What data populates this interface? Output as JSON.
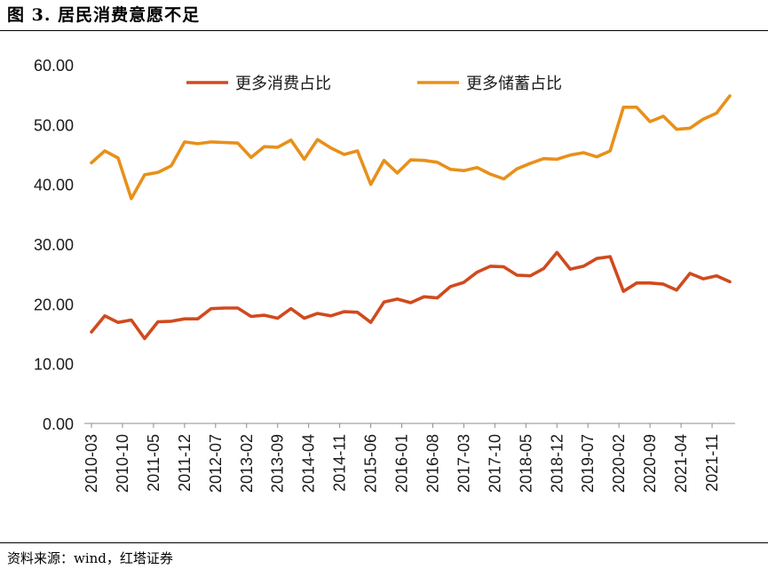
{
  "figure": {
    "title": "图 3. 居民消费意愿不足",
    "source": "资料来源：wind，红塔证券"
  },
  "colors": {
    "consume": "#D04A1E",
    "save": "#E8901A"
  },
  "chart_data": {
    "type": "line",
    "ylim": [
      0,
      60
    ],
    "yticks": [
      "0.00",
      "10.00",
      "20.00",
      "30.00",
      "40.00",
      "50.00",
      "60.00"
    ],
    "xticklabels": [
      "2010-03",
      "2010-10",
      "2011-05",
      "2011-12",
      "2012-07",
      "2013-02",
      "2013-09",
      "2014-04",
      "2014-11",
      "2015-06",
      "2016-01",
      "2016-08",
      "2017-03",
      "2017-10",
      "2018-05",
      "2018-12",
      "2019-07",
      "2020-02",
      "2020-09",
      "2021-04",
      "2021-11"
    ],
    "legend_position": "top-center",
    "grid": false,
    "series": [
      {
        "name": "更多消费占比",
        "values": [
          15.3,
          18.0,
          16.9,
          17.3,
          14.2,
          17.0,
          17.1,
          17.5,
          17.5,
          19.2,
          19.3,
          19.3,
          17.9,
          18.1,
          17.6,
          19.2,
          17.6,
          18.4,
          18.0,
          18.7,
          18.6,
          16.9,
          20.3,
          20.8,
          20.2,
          21.2,
          21.0,
          22.9,
          23.6,
          25.3,
          26.3,
          26.2,
          24.8,
          24.7,
          25.9,
          28.6,
          25.8,
          26.3,
          27.6,
          27.9,
          22.1,
          23.5,
          23.5,
          23.3,
          22.3,
          25.1,
          24.2,
          24.7,
          23.7
        ]
      },
      {
        "name": "更多储蓄占比",
        "values": [
          43.6,
          45.6,
          44.4,
          37.6,
          41.6,
          42.0,
          43.1,
          47.1,
          46.8,
          47.1,
          47.0,
          46.9,
          44.5,
          46.3,
          46.2,
          47.4,
          44.2,
          47.5,
          46.1,
          45.0,
          45.6,
          40.0,
          44.0,
          41.9,
          44.1,
          44.0,
          43.7,
          42.5,
          42.3,
          42.8,
          41.7,
          40.9,
          42.6,
          43.5,
          44.3,
          44.2,
          44.9,
          45.3,
          44.6,
          45.6,
          52.9,
          52.9,
          50.5,
          51.4,
          49.2,
          49.4,
          50.9,
          51.9,
          54.8
        ]
      }
    ]
  }
}
